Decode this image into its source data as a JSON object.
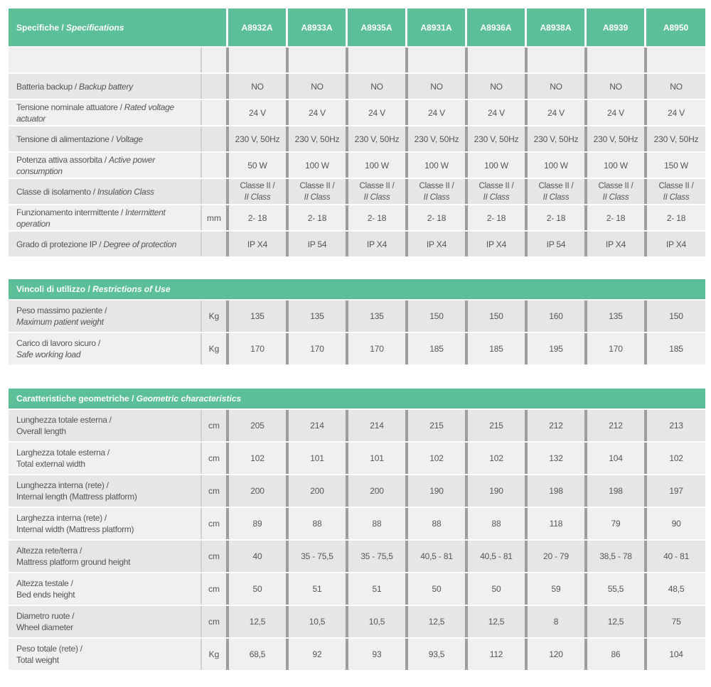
{
  "specs": {
    "header_it": "Specifiche",
    "header_sep": " / ",
    "header_en": "Specifications",
    "models": [
      "A8932A",
      "A8933A",
      "A8935A",
      "A8931A",
      "A8936A",
      "A8938A",
      "A8939",
      "A8950"
    ],
    "rows": [
      {
        "it": "Batteria backup",
        "en": "Backup battery",
        "unit": "",
        "values": [
          "NO",
          "NO",
          "NO",
          "NO",
          "NO",
          "NO",
          "NO",
          "NO"
        ]
      },
      {
        "it": "Tensione nominale attuatore",
        "en": "Rated voltage actuator",
        "unit": "",
        "values": [
          "24 V",
          "24 V",
          "24 V",
          "24 V",
          "24 V",
          "24 V",
          "24 V",
          "24 V"
        ]
      },
      {
        "it": "Tensione di alimentazione",
        "en": "Voltage",
        "unit": "",
        "values": [
          "230 V, 50Hz",
          "230 V, 50Hz",
          "230 V, 50Hz",
          "230 V, 50Hz",
          "230 V, 50Hz",
          "230 V, 50Hz",
          "230 V, 50Hz",
          "230 V, 50Hz"
        ]
      },
      {
        "it": "Potenza attiva assorbita",
        "en": "Active power consumption",
        "unit": "",
        "values": [
          "50 W",
          "100 W",
          "100 W",
          "100 W",
          "100 W",
          "100 W",
          "100 W",
          "150 W"
        ]
      },
      {
        "it": "Classe di isolamento",
        "en": "Insulation Class",
        "unit": "",
        "values_l1": [
          "Classe II /",
          "Classe II /",
          "Classe II /",
          "Classe II /",
          "Classe II /",
          "Classe II /",
          "Classe II /",
          "Classe II /"
        ],
        "values_l2": [
          "II Class",
          "II Class",
          "II Class",
          "II Class",
          "II Class",
          "II Class",
          "II Class",
          "II Class"
        ]
      },
      {
        "it": "Funzionamento intermittente",
        "en": "Intermittent operation",
        "unit": "mm",
        "values": [
          "2- 18",
          "2- 18",
          "2- 18",
          "2- 18",
          "2- 18",
          "2- 18",
          "2- 18",
          "2- 18"
        ]
      },
      {
        "it": "Grado di protezione IP",
        "en": "Degree of protection",
        "unit": "",
        "values": [
          "IP X4",
          "IP 54",
          "IP X4",
          "IP X4",
          "IP X4",
          "IP 54",
          "IP X4",
          "IP X4"
        ]
      }
    ]
  },
  "restrictions": {
    "header_it": "Vincoli di utilizzo",
    "header_sep": " / ",
    "header_en": "Restrictions of Use",
    "rows": [
      {
        "it": "Peso massimo paziente /",
        "en": "Maximum patient weight",
        "unit": "Kg",
        "values": [
          "135",
          "135",
          "135",
          "150",
          "150",
          "160",
          "135",
          "150"
        ]
      },
      {
        "it": "Carico di lavoro sicuro /",
        "en": "Safe working load",
        "unit": "Kg",
        "values": [
          "170",
          "170",
          "170",
          "185",
          "185",
          "195",
          "170",
          "185"
        ]
      }
    ]
  },
  "geometric": {
    "header_it": "Caratteristiche geometriche",
    "header_sep": " / ",
    "header_en": "Geometric characteristics",
    "rows": [
      {
        "it": "Lunghezza totale esterna /",
        "en": "Overall length",
        "unit": "cm",
        "values": [
          "205",
          "214",
          "214",
          "215",
          "215",
          "212",
          "212",
          "213"
        ]
      },
      {
        "it": "Larghezza totale esterna /",
        "en": "Total external width",
        "unit": "cm",
        "values": [
          "102",
          "101",
          "101",
          "102",
          "102",
          "132",
          "104",
          "102"
        ]
      },
      {
        "it": "Lunghezza interna (rete) /",
        "en": "Internal length (Mattress platform)",
        "unit": "cm",
        "values": [
          "200",
          "200",
          "200",
          "190",
          "190",
          "198",
          "198",
          "197"
        ]
      },
      {
        "it": "Larghezza interna (rete) /",
        "en": "Internal width (Mattress platform)",
        "unit": "cm",
        "values": [
          "89",
          "88",
          "88",
          "88",
          "88",
          "118",
          "79",
          "90"
        ]
      },
      {
        "it": "Altezza rete/terra /",
        "en": "Mattress platform ground height",
        "unit": "cm",
        "values": [
          "40",
          "35 - 75,5",
          "35 - 75,5",
          "40,5 - 81",
          "40,5 - 81",
          "20 - 79",
          "38,5 - 78",
          "40 - 81"
        ]
      },
      {
        "it": "Altezza testale /",
        "en": "Bed ends height",
        "unit": "cm",
        "values": [
          "50",
          "51",
          "51",
          "50",
          "50",
          "59",
          "55,5",
          "48,5"
        ]
      },
      {
        "it": "Diametro ruote /",
        "en": "Wheel diameter",
        "unit": "cm",
        "values": [
          "12,5",
          "10,5",
          "10,5",
          "12,5",
          "12,5",
          "8",
          "12,5",
          "75"
        ]
      },
      {
        "it": "Peso totale (rete) /",
        "en": "Total weight",
        "unit": "Kg",
        "values": [
          "68,5",
          "92",
          "93",
          "93,5",
          "112",
          "120",
          "86",
          "104"
        ]
      }
    ]
  }
}
